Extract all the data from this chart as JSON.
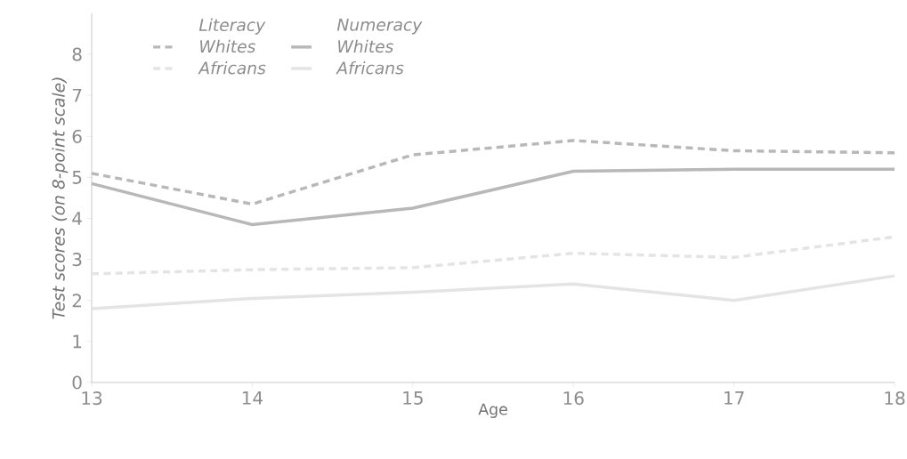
{
  "chart_data": {
    "type": "line",
    "xlabel": "Age",
    "ylabel": "Test scores (on 8-point scale)",
    "annotations": [
      "Literacy",
      "Numeracy"
    ],
    "x": [
      13,
      14,
      15,
      16,
      17,
      18
    ],
    "series": [
      {
        "name": "Whites",
        "color": "#b8b8b8",
        "line_style": "dashed",
        "values": [
          5.1,
          4.35,
          5.55,
          5.9,
          5.65,
          5.6
        ]
      },
      {
        "name": "Whites",
        "color": "#b8b8b8",
        "line_style": "solid",
        "values": [
          4.85,
          3.85,
          4.25,
          5.15,
          5.2,
          5.2
        ]
      },
      {
        "name": "Africans",
        "color": "#e4e4e4",
        "line_style": "dashed",
        "values": [
          2.65,
          2.75,
          2.8,
          3.15,
          3.05,
          3.55
        ]
      },
      {
        "name": "Africans",
        "color": "#e4e4e4",
        "line_style": "solid",
        "values": [
          1.8,
          2.05,
          2.2,
          2.4,
          2.0,
          2.6
        ]
      }
    ],
    "xlim": [
      13,
      18
    ],
    "ylim": [
      0,
      9
    ],
    "xticks": [
      13,
      14,
      15,
      16,
      17,
      18
    ],
    "yticks": [
      0,
      1,
      2,
      3,
      4,
      5,
      6,
      7,
      8
    ],
    "grid": false,
    "legend": "top left",
    "marker": "none"
  }
}
